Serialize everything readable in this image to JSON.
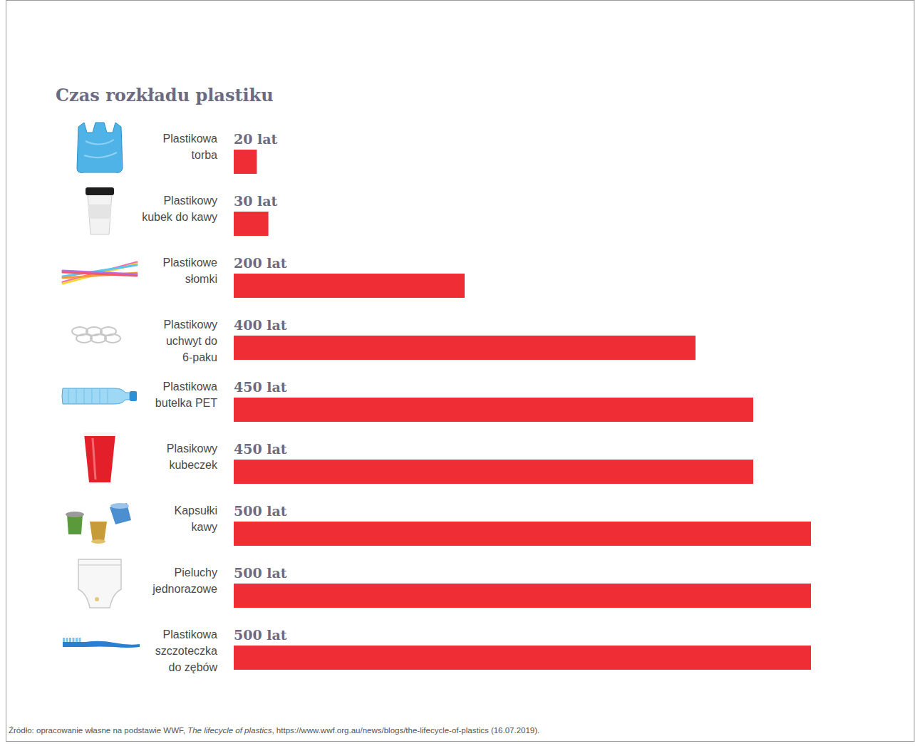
{
  "chart_data": {
    "type": "bar",
    "orientation": "horizontal",
    "title": "Czas rozkładu plastiku",
    "categories": [
      "Plastikowa torba",
      "Plastikowy kubek do kawy",
      "Plastikowe słomki",
      "Plastikowy uchwyt do 6-paku",
      "Plastikowa butelka PET",
      "Plasikowy kubeczek",
      "Kapsułki kawy",
      "Pieluchy jednorazowe",
      "Plastikowa szczoteczka do zębów"
    ],
    "values": [
      20,
      30,
      200,
      400,
      450,
      450,
      500,
      500,
      500
    ],
    "value_labels": [
      "20 lat",
      "30 lat",
      "200 lat",
      "400 lat",
      "450 lat",
      "450 lat",
      "500 lat",
      "500 lat",
      "500 lat"
    ],
    "data_labels": true,
    "color": "#ee2d35",
    "xlim": [
      0,
      500
    ],
    "tick_labels": false,
    "grid": false,
    "source": [
      "Źródło: opracowanie własne na podstawie WWF, ",
      "The lifecycle of plastics",
      ", https://www.wwf.org.au/news/blogs/the-lifecycle-of-plastics (16.07.2019)."
    ]
  }
}
